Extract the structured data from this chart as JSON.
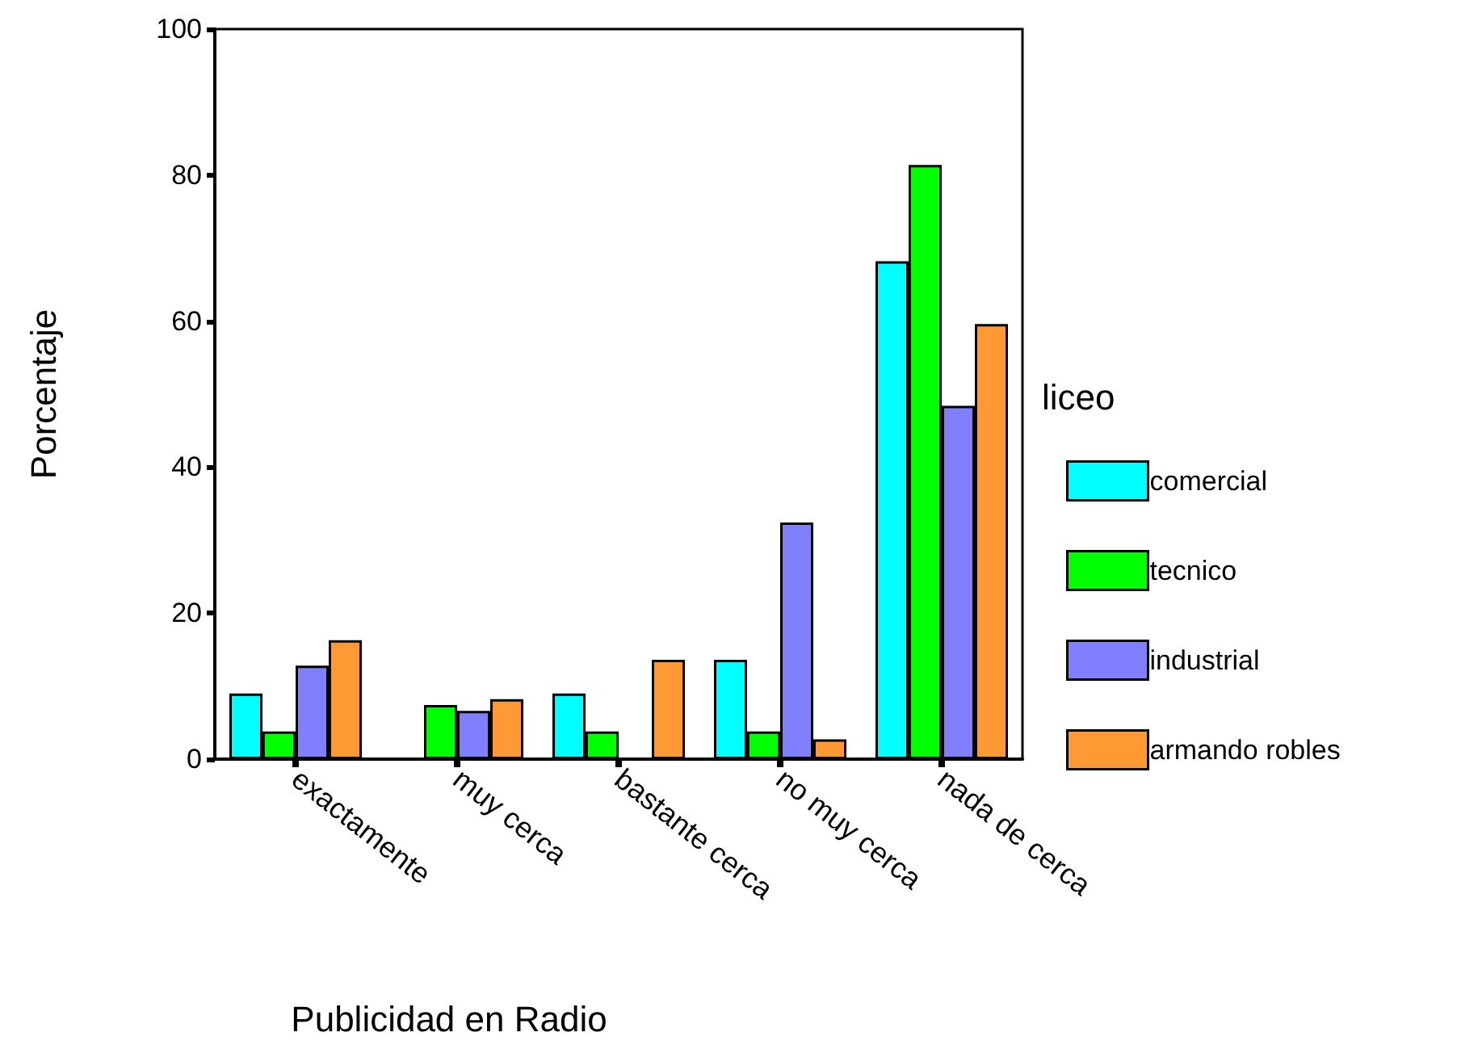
{
  "chart_data": {
    "type": "bar",
    "xlabel": "Publicidad en Radio",
    "ylabel": "Porcentaje",
    "legend_title": "liceo",
    "categories": [
      "exactamente",
      "muy cerca",
      "bastante cerca",
      "no muy cerca",
      "nada de cerca"
    ],
    "series": [
      {
        "name": "comercial",
        "color": "#00ffff",
        "values": [
          9.0,
          null,
          9.0,
          13.6,
          68.2
        ]
      },
      {
        "name": "tecnico",
        "color": "#00ff00",
        "values": [
          3.8,
          7.4,
          3.8,
          3.8,
          81.4
        ]
      },
      {
        "name": "industrial",
        "color": "#8080ff",
        "values": [
          12.8,
          6.6,
          null,
          32.4,
          48.4
        ]
      },
      {
        "name": "armando robles",
        "color": "#ff9933",
        "values": [
          16.3,
          8.2,
          13.6,
          2.7,
          59.6
        ]
      }
    ],
    "ylim": [
      0,
      100
    ],
    "yticks": [
      0,
      20,
      40,
      60,
      80,
      100
    ],
    "grid": false,
    "legend": "right"
  }
}
